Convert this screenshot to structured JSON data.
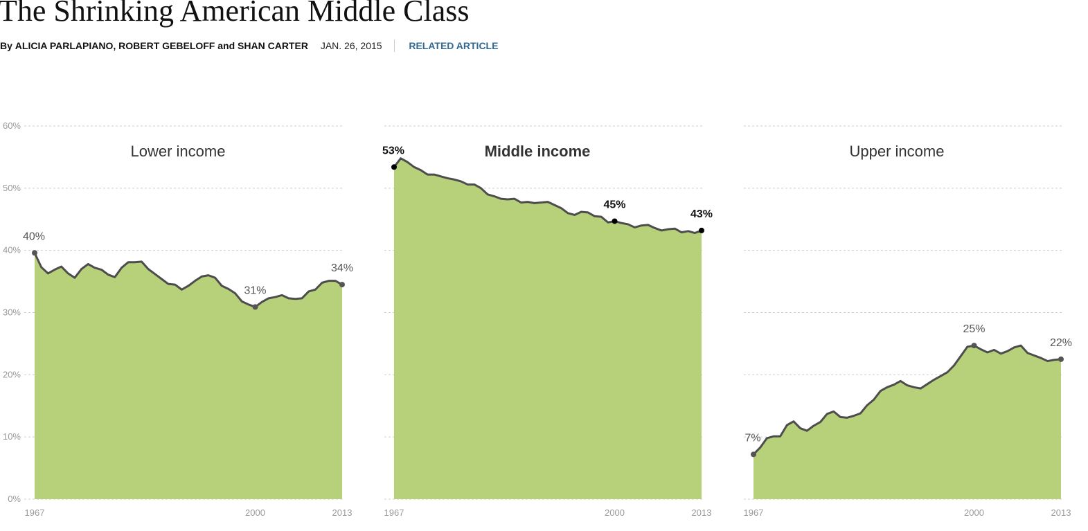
{
  "header": {
    "title": "The Shrinking American Middle Class",
    "byline_prefix": "By",
    "authors": [
      "ALICIA PARLAPIANO",
      "ROBERT GEBELOFF",
      "SHAN CARTER"
    ],
    "author_joiner_1": ",",
    "author_joiner_2": "and",
    "date": "JAN. 26, 2015",
    "related_link": "RELATED ARTICLE",
    "related_link_color": "#326891"
  },
  "colors": {
    "area_fill": "#b7d17a",
    "line": "#4d4d4d",
    "grid": "#cccccc",
    "tick": "#999999"
  },
  "chart_data": [
    {
      "type": "area",
      "title": "Lower income",
      "highlighted": false,
      "x_ticks": [
        1967,
        2000,
        2013
      ],
      "y_ticks": [
        "0%",
        "10%",
        "20%",
        "30%",
        "40%",
        "50%",
        "60%"
      ],
      "ylim": [
        0,
        60
      ],
      "xlim": [
        1967,
        2013
      ],
      "grid": true,
      "x": [
        1967,
        1968,
        1969,
        1970,
        1971,
        1972,
        1973,
        1974,
        1975,
        1976,
        1977,
        1978,
        1979,
        1980,
        1981,
        1982,
        1983,
        1984,
        1985,
        1986,
        1987,
        1988,
        1989,
        1990,
        1991,
        1992,
        1993,
        1994,
        1995,
        1996,
        1997,
        1998,
        1999,
        2000,
        2001,
        2002,
        2003,
        2004,
        2005,
        2006,
        2007,
        2008,
        2009,
        2010,
        2011,
        2012,
        2013
      ],
      "values": [
        39.6,
        37.3,
        36.3,
        36.9,
        37.4,
        36.3,
        35.6,
        37.0,
        37.8,
        37.2,
        36.9,
        36.1,
        35.7,
        37.2,
        38.1,
        38.1,
        38.2,
        37.0,
        36.2,
        35.4,
        34.6,
        34.5,
        33.7,
        34.3,
        35.1,
        35.8,
        36.0,
        35.6,
        34.3,
        33.8,
        33.1,
        31.8,
        31.3,
        30.9,
        31.7,
        32.3,
        32.5,
        32.8,
        32.3,
        32.2,
        32.3,
        33.4,
        33.7,
        34.8,
        35.1,
        35.1,
        34.5
      ],
      "labels": [
        {
          "x": 1967,
          "value": 39.6,
          "text": "40%"
        },
        {
          "x": 2000,
          "value": 30.9,
          "text": "31%"
        },
        {
          "x": 2013,
          "value": 34.5,
          "text": "34%"
        }
      ]
    },
    {
      "type": "area",
      "title": "Middle income",
      "highlighted": true,
      "x_ticks": [
        1967,
        2000,
        2013
      ],
      "ylim": [
        0,
        60
      ],
      "xlim": [
        1967,
        2013
      ],
      "grid": true,
      "x": [
        1967,
        1968,
        1969,
        1970,
        1971,
        1972,
        1973,
        1974,
        1975,
        1976,
        1977,
        1978,
        1979,
        1980,
        1981,
        1982,
        1983,
        1984,
        1985,
        1986,
        1987,
        1988,
        1989,
        1990,
        1991,
        1992,
        1993,
        1994,
        1995,
        1996,
        1997,
        1998,
        1999,
        2000,
        2001,
        2002,
        2003,
        2004,
        2005,
        2006,
        2007,
        2008,
        2009,
        2010,
        2011,
        2012,
        2013
      ],
      "values": [
        53.4,
        54.8,
        54.2,
        53.4,
        52.9,
        52.2,
        52.2,
        51.9,
        51.6,
        51.4,
        51.1,
        50.6,
        50.6,
        50.0,
        49.0,
        48.7,
        48.3,
        48.2,
        48.3,
        47.7,
        47.8,
        47.6,
        47.7,
        47.8,
        47.3,
        46.8,
        46.0,
        45.7,
        46.2,
        46.1,
        45.5,
        45.4,
        44.5,
        44.7,
        44.4,
        44.2,
        43.7,
        44.0,
        44.1,
        43.6,
        43.2,
        43.4,
        43.5,
        42.9,
        43.1,
        42.8,
        43.2
      ],
      "labels": [
        {
          "x": 1967,
          "value": 53.4,
          "text": "53%"
        },
        {
          "x": 2000,
          "value": 44.7,
          "text": "45%"
        },
        {
          "x": 2013,
          "value": 43.2,
          "text": "43%"
        }
      ]
    },
    {
      "type": "area",
      "title": "Upper income",
      "highlighted": false,
      "x_ticks": [
        1967,
        2000,
        2013
      ],
      "ylim": [
        0,
        60
      ],
      "xlim": [
        1967,
        2013
      ],
      "grid": true,
      "x": [
        1967,
        1968,
        1969,
        1970,
        1971,
        1972,
        1973,
        1974,
        1975,
        1976,
        1977,
        1978,
        1979,
        1980,
        1981,
        1982,
        1983,
        1984,
        1985,
        1986,
        1987,
        1988,
        1989,
        1990,
        1991,
        1992,
        1993,
        1994,
        1995,
        1996,
        1997,
        1998,
        1999,
        2000,
        2001,
        2002,
        2003,
        2004,
        2005,
        2006,
        2007,
        2008,
        2009,
        2010,
        2011,
        2012,
        2013
      ],
      "values": [
        7.2,
        8.3,
        9.8,
        10.1,
        10.1,
        11.9,
        12.5,
        11.4,
        11.0,
        11.8,
        12.4,
        13.7,
        14.1,
        13.2,
        13.1,
        13.4,
        13.8,
        15.1,
        16.0,
        17.4,
        18.0,
        18.4,
        19.0,
        18.3,
        18.0,
        17.8,
        18.5,
        19.2,
        19.8,
        20.4,
        21.5,
        23.0,
        24.5,
        24.7,
        24.1,
        23.6,
        24.0,
        23.4,
        23.8,
        24.4,
        24.7,
        23.5,
        23.1,
        22.7,
        22.2,
        22.4,
        22.5
      ],
      "labels": [
        {
          "x": 1967,
          "value": 7.2,
          "text": "7%"
        },
        {
          "x": 2000,
          "value": 24.7,
          "text": "25%"
        },
        {
          "x": 2013,
          "value": 22.5,
          "text": "22%"
        }
      ]
    }
  ]
}
